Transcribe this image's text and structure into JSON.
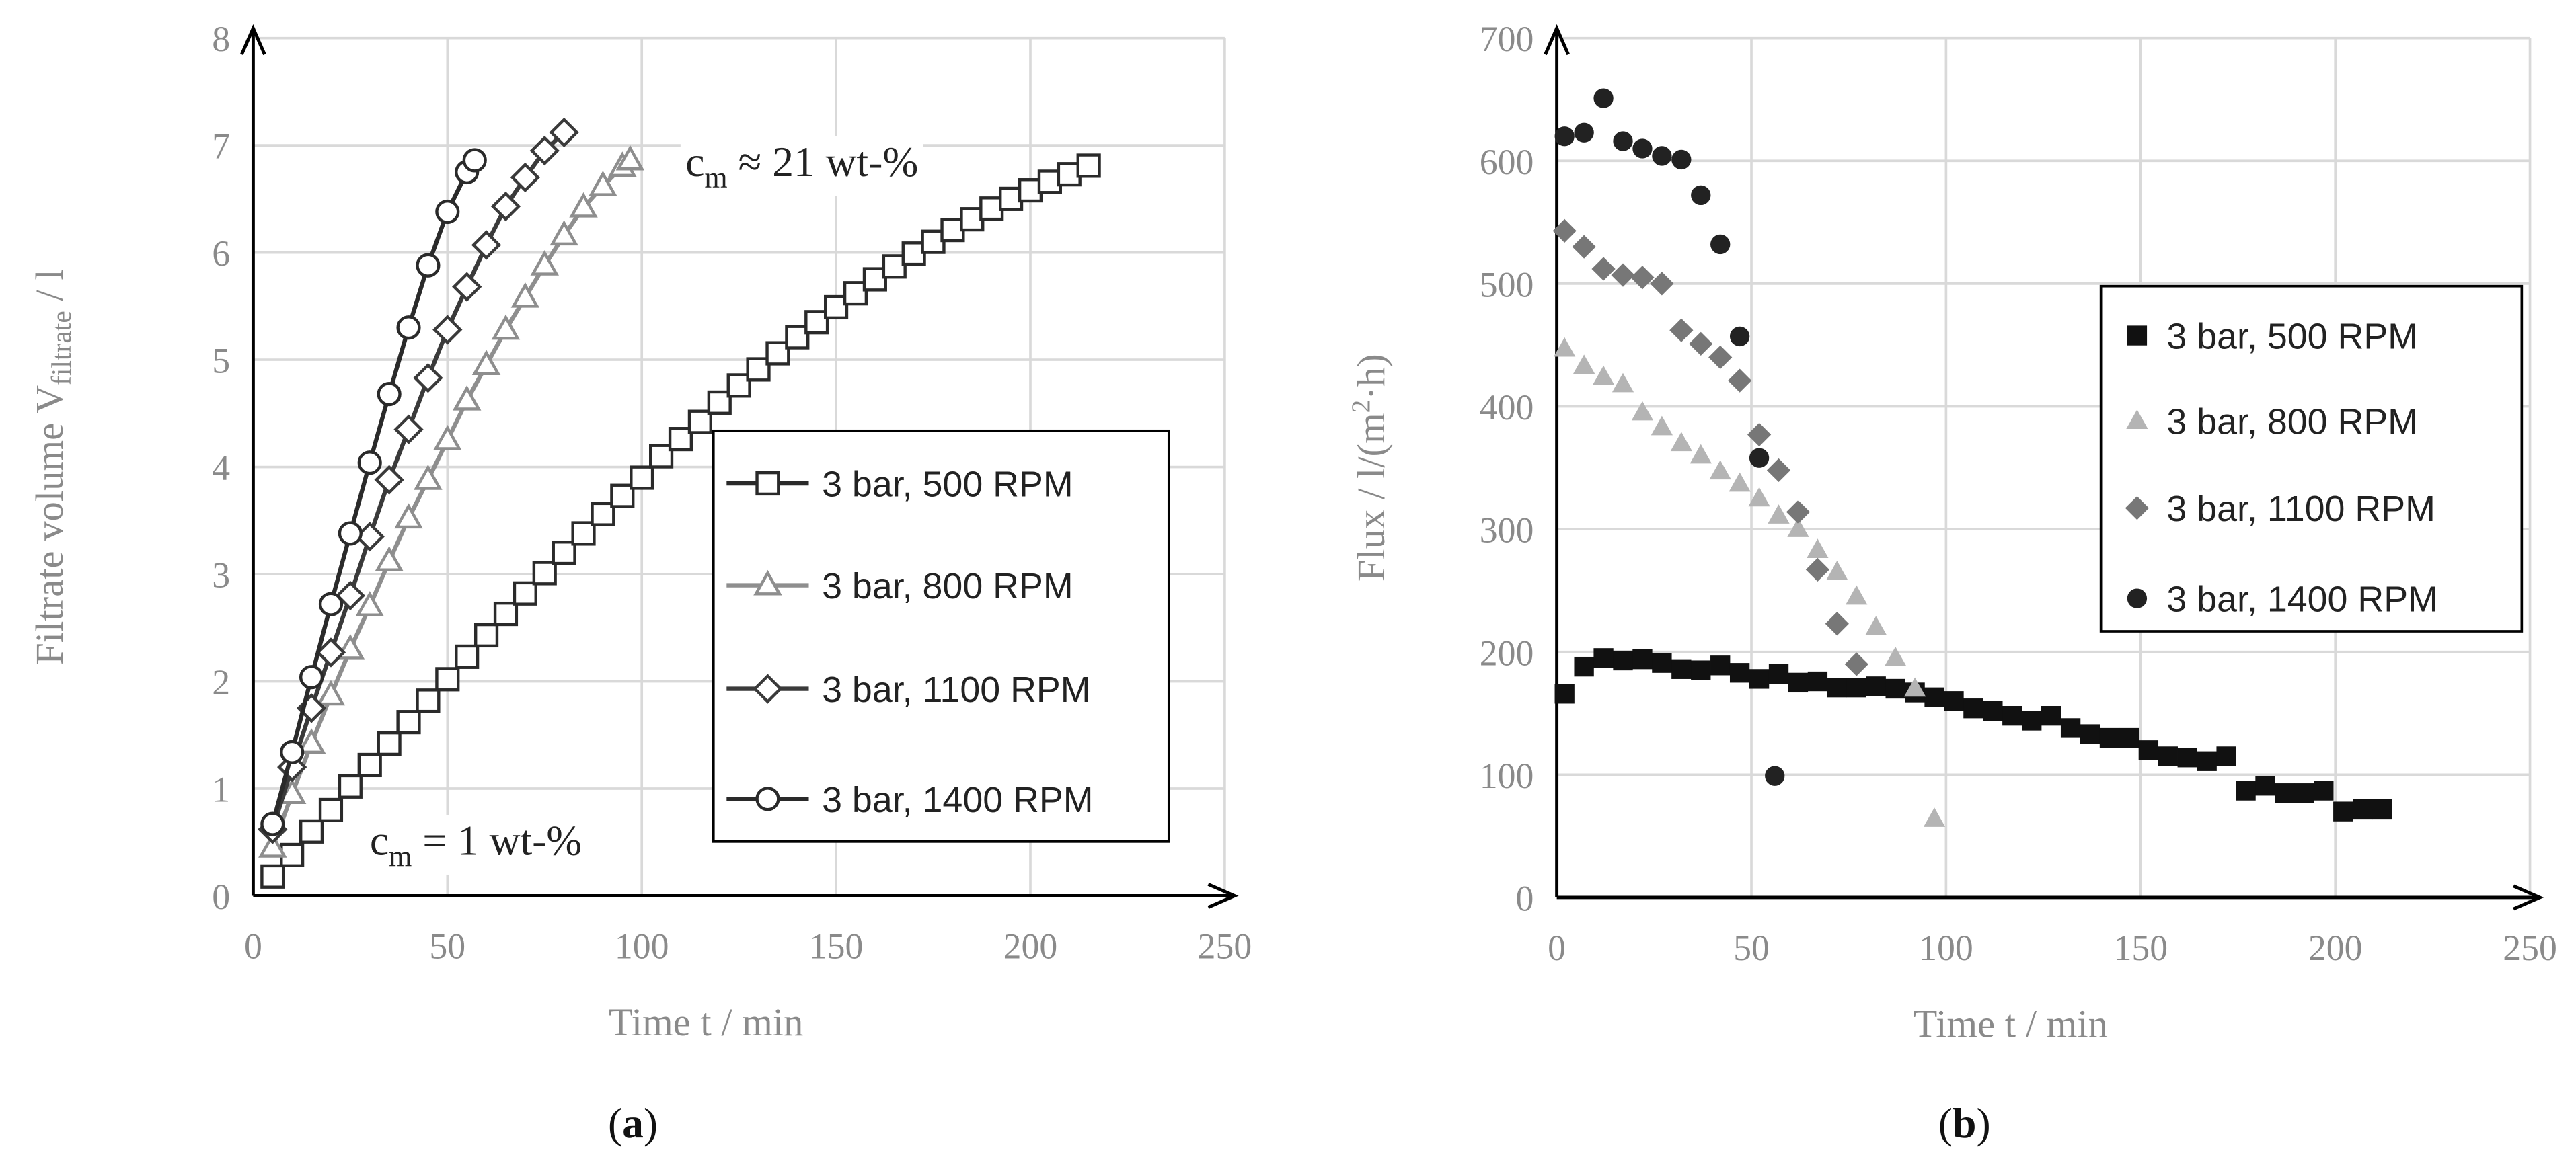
{
  "chart_data": [
    {
      "type": "line",
      "panel": "(a)",
      "xlabel": "Time t / min",
      "ylabel": "Filtrate volume V",
      "ylabel_sub": "filtrate",
      "ylabel_unit": " / l",
      "xlim": [
        0,
        250
      ],
      "ylim": [
        0,
        8
      ],
      "xticks": [
        0,
        50,
        100,
        150,
        200,
        250
      ],
      "yticks": [
        0,
        1,
        2,
        3,
        4,
        5,
        6,
        7,
        8
      ],
      "grid": true,
      "legend_position": "center-right",
      "annotations": [
        {
          "text": "c",
          "sub": "m",
          "rest": " ≈ 21 wt-%",
          "x": 110,
          "y": 7.1
        },
        {
          "text": "c",
          "sub": "m",
          "rest": " = 1 wt-%",
          "x": 30,
          "y": 0.45
        }
      ],
      "series": [
        {
          "name": "3 bar, 500 RPM",
          "color": "#2a2a2a",
          "marker": "square",
          "x": [
            5,
            10,
            15,
            20,
            25,
            30,
            35,
            40,
            45,
            50,
            55,
            60,
            65,
            70,
            75,
            80,
            85,
            90,
            95,
            100,
            105,
            110,
            115,
            120,
            125,
            130,
            135,
            140,
            145,
            150,
            155,
            160,
            165,
            170,
            175,
            180,
            185,
            190,
            195,
            200,
            205,
            210,
            215
          ],
          "y": [
            0.18,
            0.38,
            0.6,
            0.8,
            1.02,
            1.22,
            1.42,
            1.62,
            1.82,
            2.02,
            2.23,
            2.43,
            2.63,
            2.82,
            3.01,
            3.2,
            3.38,
            3.56,
            3.73,
            3.9,
            4.1,
            4.26,
            4.42,
            4.6,
            4.76,
            4.91,
            5.06,
            5.21,
            5.35,
            5.49,
            5.62,
            5.75,
            5.87,
            5.99,
            6.1,
            6.21,
            6.31,
            6.41,
            6.5,
            6.58,
            6.66,
            6.73,
            6.81
          ]
        },
        {
          "name": "3 bar, 800 RPM",
          "color": "#8e8e8e",
          "marker": "triangle",
          "x": [
            5,
            10,
            15,
            20,
            25,
            30,
            35,
            40,
            45,
            50,
            55,
            60,
            65,
            70,
            75,
            80,
            85,
            90,
            95,
            97
          ],
          "y": [
            0.45,
            0.95,
            1.42,
            1.87,
            2.3,
            2.7,
            3.12,
            3.52,
            3.88,
            4.25,
            4.62,
            4.95,
            5.28,
            5.58,
            5.88,
            6.16,
            6.42,
            6.62,
            6.8,
            6.86
          ]
        },
        {
          "name": "3 bar, 1100 RPM",
          "color": "#3a3a3a",
          "marker": "diamond",
          "x": [
            5,
            10,
            15,
            20,
            25,
            30,
            35,
            40,
            45,
            50,
            55,
            60,
            65,
            70,
            75,
            80
          ],
          "y": [
            0.62,
            1.2,
            1.75,
            2.27,
            2.8,
            3.35,
            3.88,
            4.35,
            4.83,
            5.28,
            5.68,
            6.07,
            6.43,
            6.7,
            6.95,
            7.12
          ]
        },
        {
          "name": "3 bar, 1400 RPM",
          "color": "#2a2a2a",
          "marker": "circle",
          "x": [
            5,
            10,
            15,
            20,
            25,
            30,
            35,
            40,
            45,
            50,
            55,
            57
          ],
          "y": [
            0.67,
            1.34,
            2.04,
            2.72,
            3.38,
            4.04,
            4.68,
            5.3,
            5.88,
            6.38,
            6.75,
            6.86
          ]
        }
      ]
    },
    {
      "type": "scatter",
      "panel": "(b)",
      "xlabel": "Time t / min",
      "ylabel": "Flux / l/(m",
      "ylabel_sup": "2",
      "ylabel_unit": "·h)",
      "xlim": [
        0,
        250
      ],
      "ylim": [
        0,
        700
      ],
      "xticks": [
        0,
        50,
        100,
        150,
        200,
        250
      ],
      "yticks": [
        0,
        100,
        200,
        300,
        400,
        500,
        600,
        700
      ],
      "grid": true,
      "legend_position": "top-right",
      "series": [
        {
          "name": "3 bar, 500 RPM",
          "color": "#111111",
          "marker": "square",
          "x": [
            2,
            7,
            12,
            17,
            22,
            27,
            32,
            37,
            42,
            47,
            52,
            57,
            62,
            67,
            72,
            77,
            82,
            87,
            92,
            97,
            102,
            107,
            112,
            117,
            122,
            127,
            132,
            137,
            142,
            147,
            152,
            157,
            162,
            167,
            172,
            177,
            182,
            187,
            192,
            197,
            202,
            207,
            212
          ],
          "y": [
            166,
            188,
            195,
            193,
            194,
            191,
            186,
            185,
            189,
            183,
            178,
            182,
            175,
            176,
            171,
            171,
            172,
            170,
            167,
            163,
            160,
            154,
            152,
            148,
            144,
            148,
            138,
            133,
            130,
            130,
            120,
            115,
            114,
            111,
            115,
            87,
            91,
            85,
            85,
            87,
            70,
            72,
            72
          ]
        },
        {
          "name": "3 bar, 800 RPM",
          "color": "#b4b4b4",
          "marker": "triangle",
          "x": [
            2,
            7,
            12,
            17,
            22,
            27,
            32,
            37,
            42,
            47,
            52,
            57,
            62,
            67,
            72,
            77,
            82,
            87,
            92,
            97
          ],
          "y": [
            447,
            433,
            424,
            418,
            395,
            383,
            370,
            360,
            347,
            337,
            325,
            311,
            300,
            283,
            265,
            245,
            220,
            195,
            170,
            64
          ]
        },
        {
          "name": "3 bar, 1100 RPM",
          "color": "#777777",
          "marker": "diamond",
          "x": [
            2,
            7,
            12,
            17,
            22,
            27,
            32,
            37,
            42,
            47,
            52,
            57,
            62,
            67,
            72,
            77
          ],
          "y": [
            543,
            530,
            512,
            507,
            505,
            500,
            462,
            451,
            440,
            421,
            377,
            348,
            314,
            267,
            223,
            190
          ]
        },
        {
          "name": "3 bar, 1400 RPM",
          "color": "#222222",
          "marker": "circle",
          "x": [
            2,
            7,
            12,
            17,
            22,
            27,
            32,
            37,
            42,
            47,
            52,
            56
          ],
          "y": [
            620,
            623,
            651,
            616,
            610,
            604,
            601,
            572,
            532,
            457,
            358,
            99
          ]
        }
      ]
    }
  ],
  "captions": {
    "a": "(a)",
    "b": "(b)"
  }
}
